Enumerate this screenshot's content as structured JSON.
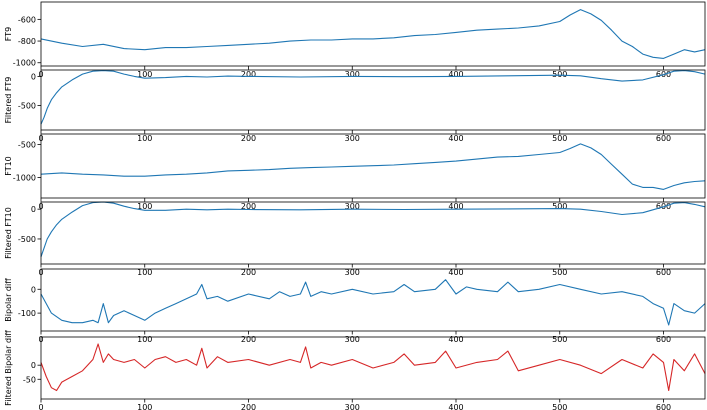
{
  "chart_data": [
    {
      "type": "line",
      "ylabel": "FT9",
      "xlim": [
        0,
        640
      ],
      "ylim": [
        -1030,
        -440
      ],
      "xticks": [
        "0",
        "100",
        "200",
        "300",
        "400",
        "500",
        "600"
      ],
      "yticks": [
        "-600",
        "-800",
        "-1000"
      ],
      "ytick_values": [
        -600,
        -800,
        -1000
      ],
      "grid": false,
      "series": [
        {
          "color": "#1f77b4",
          "x": [
            0,
            20,
            40,
            60,
            80,
            100,
            120,
            140,
            160,
            180,
            200,
            220,
            240,
            260,
            280,
            300,
            320,
            340,
            360,
            380,
            400,
            420,
            440,
            460,
            480,
            500,
            510,
            520,
            530,
            540,
            550,
            560,
            570,
            580,
            590,
            600,
            610,
            620,
            630,
            640
          ],
          "y": [
            -780,
            -820,
            -850,
            -830,
            -870,
            -880,
            -860,
            -860,
            -850,
            -840,
            -830,
            -820,
            -800,
            -790,
            -790,
            -780,
            -780,
            -770,
            -750,
            -740,
            -720,
            -700,
            -690,
            -680,
            -660,
            -620,
            -560,
            -510,
            -550,
            -610,
            -700,
            -800,
            -850,
            -920,
            -950,
            -960,
            -920,
            -880,
            -900,
            -880
          ]
        }
      ]
    },
    {
      "type": "line",
      "ylabel": "Filtered FT9",
      "xlim": [
        0,
        640
      ],
      "ylim": [
        -920,
        110
      ],
      "xticks": [
        "0",
        "100",
        "200",
        "300",
        "400",
        "500",
        "600"
      ],
      "yticks": [
        "0",
        "-500"
      ],
      "ytick_values": [
        0,
        -500
      ],
      "grid": false,
      "series": [
        {
          "color": "#1f77b4",
          "x": [
            0,
            3,
            6,
            10,
            15,
            20,
            30,
            40,
            50,
            60,
            70,
            80,
            90,
            100,
            120,
            140,
            160,
            180,
            200,
            250,
            300,
            350,
            400,
            450,
            500,
            520,
            540,
            560,
            580,
            600,
            610,
            620,
            630,
            640
          ],
          "y": [
            -820,
            -700,
            -550,
            -400,
            -280,
            -180,
            -60,
            40,
            90,
            100,
            90,
            40,
            0,
            -30,
            -20,
            0,
            -10,
            5,
            0,
            -10,
            0,
            -5,
            0,
            10,
            20,
            10,
            -40,
            -80,
            -60,
            30,
            90,
            100,
            80,
            40
          ]
        }
      ]
    },
    {
      "type": "line",
      "ylabel": "FT10",
      "xlim": [
        0,
        640
      ],
      "ylim": [
        -1310,
        -340
      ],
      "xticks": [
        "0",
        "100",
        "200",
        "300",
        "400",
        "500",
        "600"
      ],
      "yticks": [
        "-500",
        "-1000"
      ],
      "ytick_values": [
        -500,
        -1000
      ],
      "grid": false,
      "series": [
        {
          "color": "#1f77b4",
          "x": [
            0,
            20,
            40,
            60,
            80,
            100,
            120,
            140,
            160,
            180,
            200,
            220,
            240,
            260,
            280,
            300,
            320,
            340,
            360,
            380,
            400,
            420,
            440,
            460,
            480,
            500,
            510,
            520,
            530,
            540,
            550,
            560,
            570,
            580,
            590,
            600,
            610,
            620,
            630,
            640
          ],
          "y": [
            -950,
            -930,
            -950,
            -960,
            -980,
            -980,
            -960,
            -950,
            -930,
            -900,
            -890,
            -880,
            -860,
            -850,
            -840,
            -830,
            -820,
            -810,
            -790,
            -770,
            -750,
            -720,
            -690,
            -680,
            -650,
            -620,
            -560,
            -490,
            -550,
            -650,
            -800,
            -950,
            -1100,
            -1150,
            -1150,
            -1180,
            -1120,
            -1080,
            -1060,
            -1050
          ]
        }
      ]
    },
    {
      "type": "line",
      "ylabel": "Filtered FT10",
      "xlim": [
        0,
        640
      ],
      "ylim": [
        -920,
        120
      ],
      "xticks": [
        "0",
        "100",
        "200",
        "300",
        "400",
        "500",
        "600"
      ],
      "yticks": [
        "0",
        "-500"
      ],
      "ytick_values": [
        0,
        -500
      ],
      "grid": false,
      "series": [
        {
          "color": "#1f77b4",
          "x": [
            0,
            3,
            6,
            10,
            15,
            20,
            30,
            40,
            50,
            60,
            70,
            80,
            90,
            100,
            120,
            140,
            160,
            180,
            200,
            250,
            300,
            350,
            400,
            450,
            500,
            520,
            540,
            560,
            580,
            600,
            610,
            620,
            630,
            640
          ],
          "y": [
            -800,
            -650,
            -500,
            -380,
            -260,
            -170,
            -50,
            60,
            110,
            120,
            100,
            50,
            10,
            -20,
            -20,
            0,
            -10,
            0,
            -5,
            -10,
            0,
            -5,
            0,
            5,
            10,
            0,
            -40,
            -90,
            -60,
            40,
            100,
            110,
            80,
            40
          ]
        }
      ]
    },
    {
      "type": "line",
      "ylabel": "Bipolar diff",
      "xlim": [
        0,
        640
      ],
      "ylim": [
        -175,
        85
      ],
      "xticks": [
        "0",
        "100",
        "200",
        "300",
        "400",
        "500",
        "600"
      ],
      "yticks": [
        "0",
        "-100"
      ],
      "ytick_values": [
        0,
        -100
      ],
      "grid": false,
      "series": [
        {
          "color": "#1f77b4",
          "x": [
            0,
            10,
            20,
            30,
            40,
            50,
            55,
            60,
            65,
            70,
            80,
            90,
            100,
            110,
            120,
            130,
            150,
            155,
            160,
            170,
            180,
            200,
            220,
            230,
            240,
            250,
            255,
            260,
            270,
            280,
            300,
            320,
            340,
            350,
            360,
            380,
            390,
            400,
            410,
            420,
            440,
            450,
            460,
            480,
            500,
            520,
            540,
            560,
            580,
            590,
            600,
            605,
            610,
            620,
            630,
            640
          ],
          "y": [
            -20,
            -100,
            -130,
            -140,
            -140,
            -130,
            -140,
            -60,
            -140,
            -110,
            -90,
            -110,
            -130,
            -100,
            -80,
            -60,
            -20,
            20,
            -40,
            -30,
            -50,
            -20,
            -40,
            -10,
            -30,
            -20,
            30,
            -30,
            -10,
            -20,
            0,
            -20,
            -10,
            20,
            -10,
            0,
            40,
            -20,
            10,
            0,
            -10,
            30,
            -10,
            0,
            20,
            0,
            -20,
            -10,
            -30,
            -60,
            -80,
            -150,
            -60,
            -90,
            -100,
            -60
          ]
        }
      ]
    },
    {
      "type": "line",
      "ylabel": "Filtered Bipolar diff",
      "xlim": [
        0,
        640
      ],
      "ylim": [
        -120,
        100
      ],
      "xticks": [
        "0",
        "100",
        "200",
        "300",
        "400",
        "500",
        "600"
      ],
      "yticks": [
        "0",
        "-50"
      ],
      "ytick_values": [
        0,
        -50
      ],
      "grid": false,
      "series": [
        {
          "color": "#d62728",
          "x": [
            0,
            5,
            10,
            15,
            20,
            30,
            40,
            50,
            55,
            60,
            65,
            70,
            80,
            90,
            100,
            110,
            120,
            130,
            140,
            150,
            155,
            160,
            170,
            180,
            200,
            220,
            240,
            250,
            255,
            260,
            270,
            280,
            300,
            320,
            340,
            350,
            360,
            380,
            390,
            400,
            420,
            440,
            450,
            460,
            480,
            500,
            520,
            540,
            560,
            580,
            590,
            600,
            605,
            610,
            620,
            630,
            640
          ],
          "y": [
            10,
            -40,
            -80,
            -90,
            -60,
            -40,
            -20,
            20,
            75,
            10,
            40,
            20,
            10,
            20,
            -10,
            20,
            30,
            10,
            20,
            0,
            60,
            -10,
            30,
            10,
            20,
            0,
            20,
            10,
            65,
            -10,
            10,
            0,
            20,
            -10,
            10,
            40,
            0,
            10,
            50,
            -10,
            10,
            20,
            50,
            -20,
            0,
            20,
            0,
            -30,
            20,
            -10,
            40,
            10,
            -90,
            20,
            -20,
            40,
            -30
          ]
        }
      ]
    }
  ]
}
